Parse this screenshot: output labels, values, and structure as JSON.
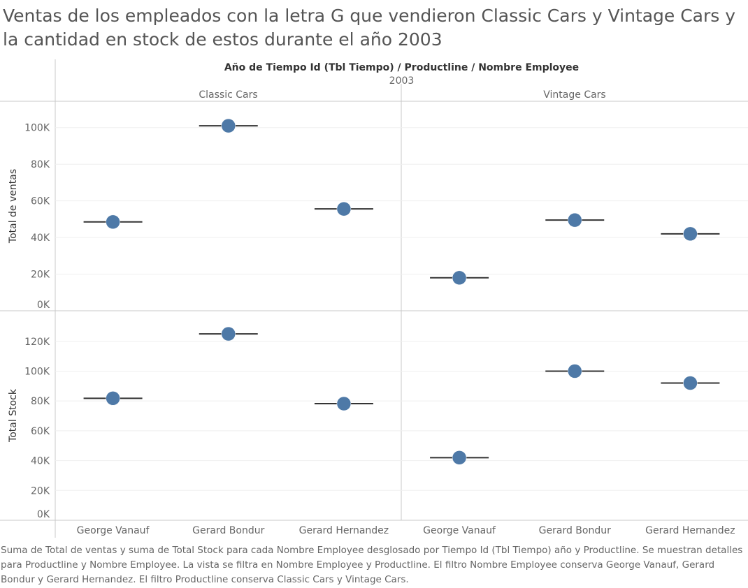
{
  "title": "Ventas de los empleados con la letra G que vendieron Classic Cars y Vintage Cars y la cantidad en stock de estos durante el año 2003",
  "caption": "Suma de Total de ventas y suma de Total Stock para cada Nombre Employee desglosado por Tiempo Id (Tbl Tiempo) año y Productline.  Se muestran detalles para Productline y Nombre Employee. La vista se filtra en Nombre Employee y Productline. El filtro Nombre Employee conserva George Vanauf, Gerard Bondur y Gerard Hernandez. El filtro Productline conserva Classic Cars y Vintage Cars.",
  "chart_data": {
    "type": "scatter",
    "column_header": "Año de Tiempo Id (Tbl Tiempo)  /  Productline  /  Nombre Employee",
    "year": "2003",
    "productlines": [
      "Classic Cars",
      "Vintage Cars"
    ],
    "employees": [
      "George Vanauf",
      "Gerard Bondur",
      "Gerard Hernandez"
    ],
    "mark_color": "#4e79a7",
    "grid": true,
    "panels": [
      {
        "ylabel": "Total de ventas",
        "ylim": [
          0,
          106000
        ],
        "ticks": [
          0,
          20000,
          40000,
          60000,
          80000,
          100000
        ],
        "tick_labels": [
          "0K",
          "20K",
          "40K",
          "60K",
          "80K",
          "100K"
        ],
        "series": [
          {
            "productline": "Classic Cars",
            "values": [
              48500,
              101000,
              55600
            ]
          },
          {
            "productline": "Vintage Cars",
            "values": [
              18000,
              49500,
              42000
            ]
          }
        ]
      },
      {
        "ylabel": "Total Stock",
        "ylim": [
          0,
          133000
        ],
        "ticks": [
          0,
          20000,
          40000,
          60000,
          80000,
          100000,
          120000
        ],
        "tick_labels": [
          "0K",
          "20K",
          "40K",
          "60K",
          "80K",
          "100K",
          "120K"
        ],
        "series": [
          {
            "productline": "Classic Cars",
            "values": [
              81800,
              125000,
              78200
            ]
          },
          {
            "productline": "Vintage Cars",
            "values": [
              42000,
              100000,
              92000
            ]
          }
        ]
      }
    ]
  }
}
